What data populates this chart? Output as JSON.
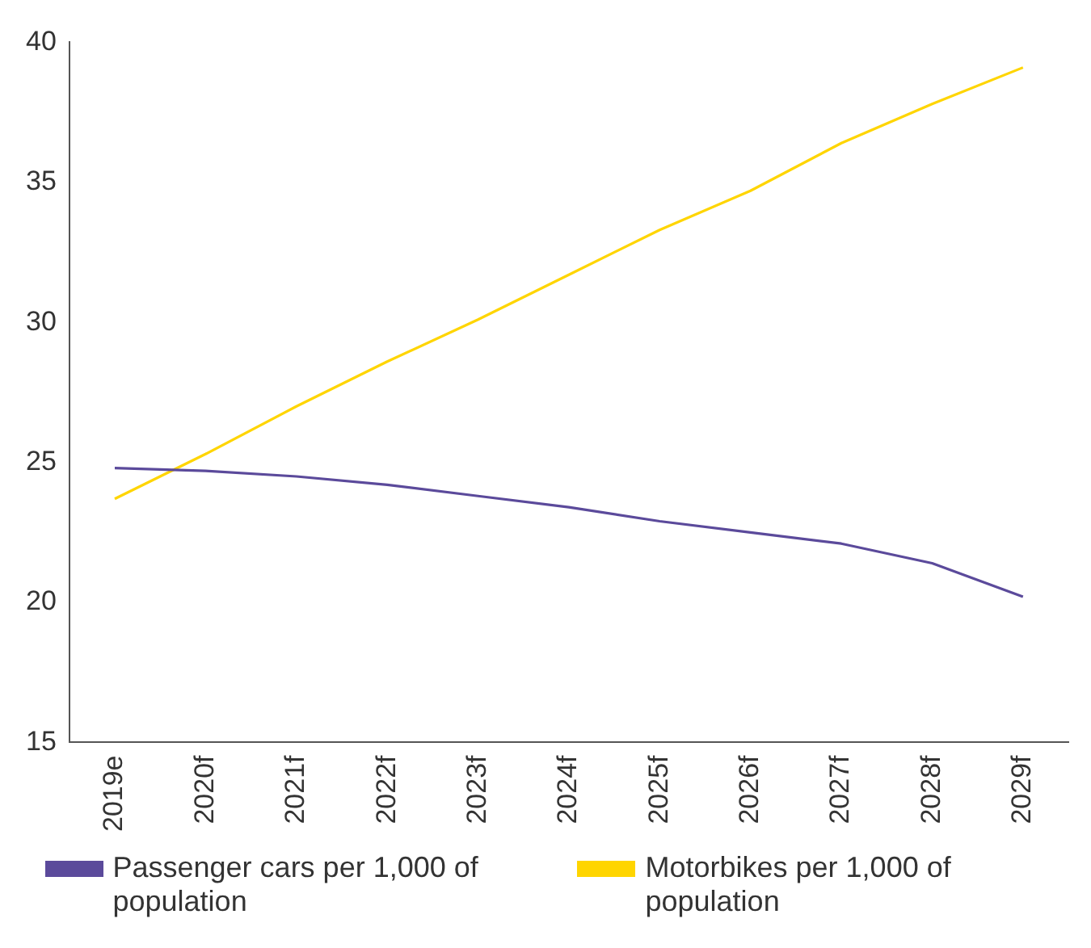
{
  "chart_data": {
    "type": "line",
    "categories": [
      "2019e",
      "2020f",
      "2021f",
      "2022f",
      "2023f",
      "2024f",
      "2025f",
      "2026f",
      "2027f",
      "2028f",
      "2029f"
    ],
    "series": [
      {
        "name": "Passenger cars per 1,000 of population",
        "color": "#5b4a9b",
        "values": [
          24.8,
          24.7,
          24.5,
          24.2,
          23.8,
          23.4,
          22.9,
          22.5,
          22.1,
          21.4,
          20.2
        ]
      },
      {
        "name": "Motorbikes per 1,000 of population",
        "color": "#ffd500",
        "values": [
          23.7,
          25.3,
          27.0,
          28.6,
          30.1,
          31.7,
          33.3,
          34.7,
          36.4,
          37.8,
          39.1
        ]
      }
    ],
    "ylim": [
      15,
      40
    ],
    "yticks": [
      15,
      20,
      25,
      30,
      35,
      40
    ],
    "grid": false,
    "legend": "bottom",
    "marker": "none",
    "line_style": "solid"
  }
}
